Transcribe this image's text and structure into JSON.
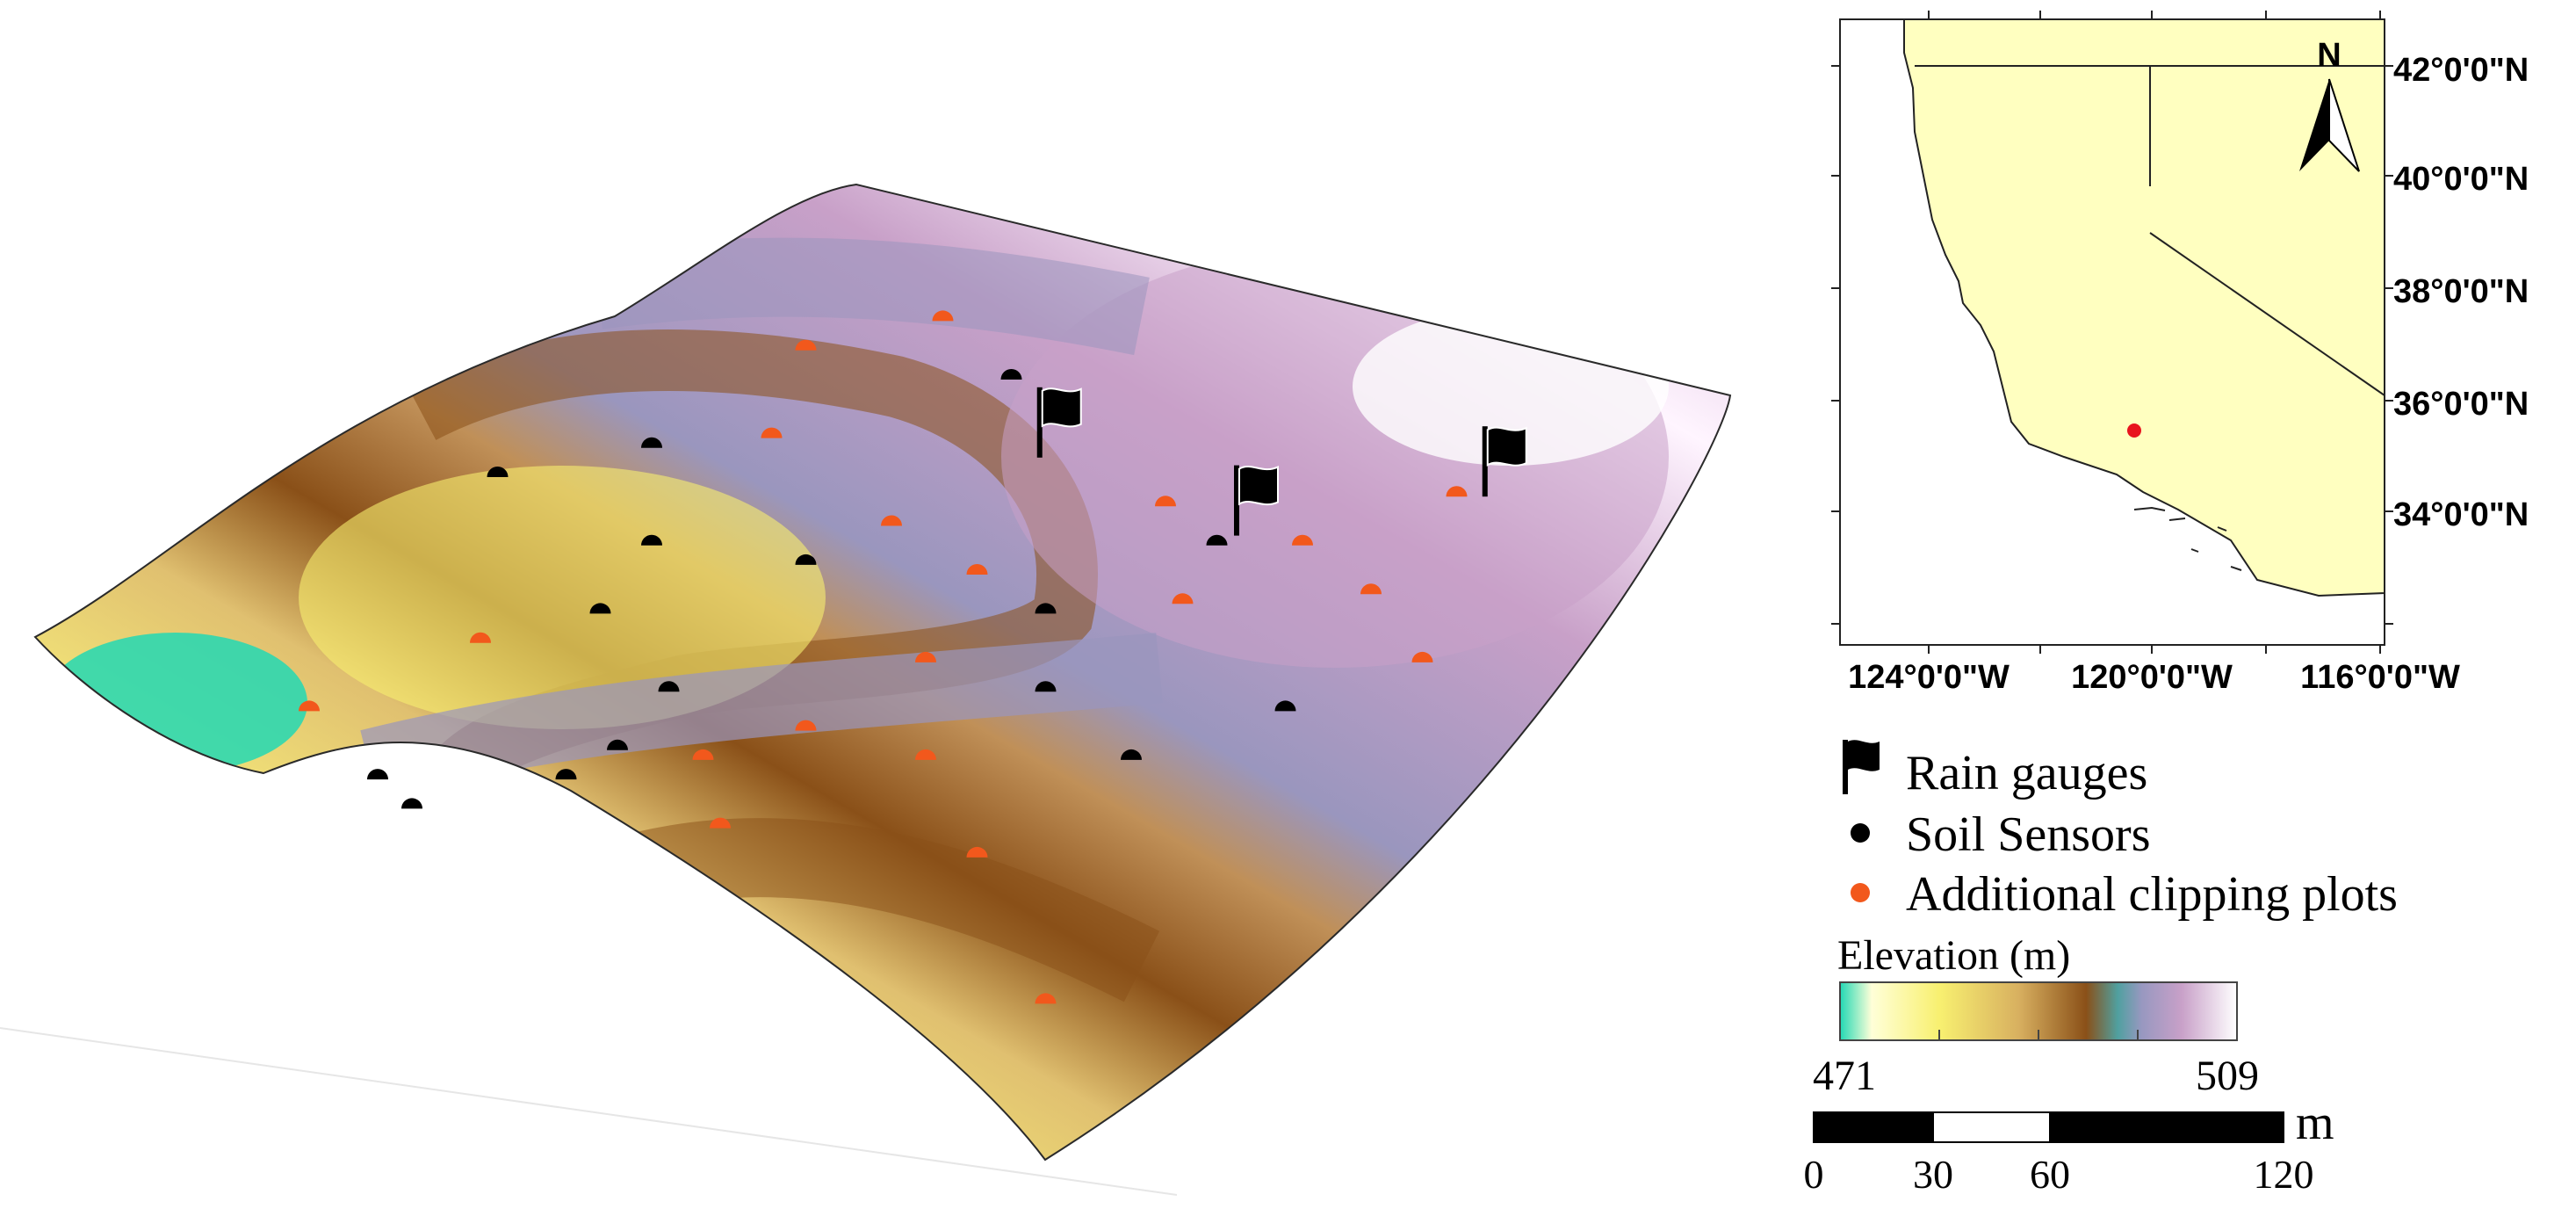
{
  "terrain": {
    "rain_gauges": [
      {
        "id": "rg1",
        "plot_x": 0.585,
        "plot_y": 0.28
      },
      {
        "id": "rg2",
        "plot_x": 0.7,
        "plot_y": 0.36
      },
      {
        "id": "rg3",
        "plot_x": 0.845,
        "plot_y": 0.32
      }
    ],
    "soil_sensors": [
      {
        "plot_x": 0.27,
        "plot_y": 0.3
      },
      {
        "plot_x": 0.36,
        "plot_y": 0.27
      },
      {
        "plot_x": 0.57,
        "plot_y": 0.2
      },
      {
        "plot_x": 0.36,
        "plot_y": 0.37
      },
      {
        "plot_x": 0.45,
        "plot_y": 0.39
      },
      {
        "plot_x": 0.33,
        "plot_y": 0.44
      },
      {
        "plot_x": 0.59,
        "plot_y": 0.44
      },
      {
        "plot_x": 0.37,
        "plot_y": 0.52
      },
      {
        "plot_x": 0.59,
        "plot_y": 0.52
      },
      {
        "plot_x": 0.73,
        "plot_y": 0.54
      },
      {
        "plot_x": 0.34,
        "plot_y": 0.58
      },
      {
        "plot_x": 0.2,
        "plot_y": 0.61
      },
      {
        "plot_x": 0.22,
        "plot_y": 0.64
      },
      {
        "plot_x": 0.31,
        "plot_y": 0.61
      },
      {
        "plot_x": 0.64,
        "plot_y": 0.59
      },
      {
        "plot_x": 0.69,
        "plot_y": 0.37
      }
    ],
    "clipping_plots": [
      {
        "plot_x": 0.53,
        "plot_y": 0.14
      },
      {
        "plot_x": 0.45,
        "plot_y": 0.17
      },
      {
        "plot_x": 0.43,
        "plot_y": 0.26
      },
      {
        "plot_x": 0.5,
        "plot_y": 0.35
      },
      {
        "plot_x": 0.66,
        "plot_y": 0.33
      },
      {
        "plot_x": 0.74,
        "plot_y": 0.37
      },
      {
        "plot_x": 0.55,
        "plot_y": 0.4
      },
      {
        "plot_x": 0.67,
        "plot_y": 0.43
      },
      {
        "plot_x": 0.78,
        "plot_y": 0.42
      },
      {
        "plot_x": 0.26,
        "plot_y": 0.47
      },
      {
        "plot_x": 0.52,
        "plot_y": 0.49
      },
      {
        "plot_x": 0.81,
        "plot_y": 0.49
      },
      {
        "plot_x": 0.16,
        "plot_y": 0.54
      },
      {
        "plot_x": 0.45,
        "plot_y": 0.56
      },
      {
        "plot_x": 0.39,
        "plot_y": 0.59
      },
      {
        "plot_x": 0.52,
        "plot_y": 0.59
      },
      {
        "plot_x": 0.4,
        "plot_y": 0.66
      },
      {
        "plot_x": 0.55,
        "plot_y": 0.69
      },
      {
        "plot_x": 0.59,
        "plot_y": 0.84
      },
      {
        "plot_x": 0.83,
        "plot_y": 0.32
      }
    ]
  },
  "inset_map": {
    "lat_labels": [
      "42°0'0\"N",
      "40°0'0\"N",
      "38°0'0\"N",
      "36°0'0\"N",
      "34°0'0\"N"
    ],
    "lon_labels": [
      "124°0'0\"W",
      "120°0'0\"W",
      "116°0'0\"W"
    ],
    "north_label": "N",
    "land_color": "#ffffc0",
    "site_color": "#e8141e"
  },
  "legend": {
    "rain_gauges": "Rain gauges",
    "soil_sensors": "Soil Sensors",
    "clipping_plots": "Additional clipping plots",
    "sensor_color": "#000000",
    "clipping_color": "#f2581c"
  },
  "elevation": {
    "title": "Elevation (m)",
    "min_label": "471",
    "max_label": "509",
    "min_value": 471,
    "max_value": 509,
    "colors": [
      "#22d8b4",
      "#ffffd8",
      "#f8f070",
      "#d8b060",
      "#8a5018",
      "#50a0a0",
      "#9898c0",
      "#c8a0c8",
      "#ffffff"
    ]
  },
  "scale_bar": {
    "unit": "m",
    "tick_labels": [
      "0",
      "30",
      "60",
      "120"
    ]
  }
}
